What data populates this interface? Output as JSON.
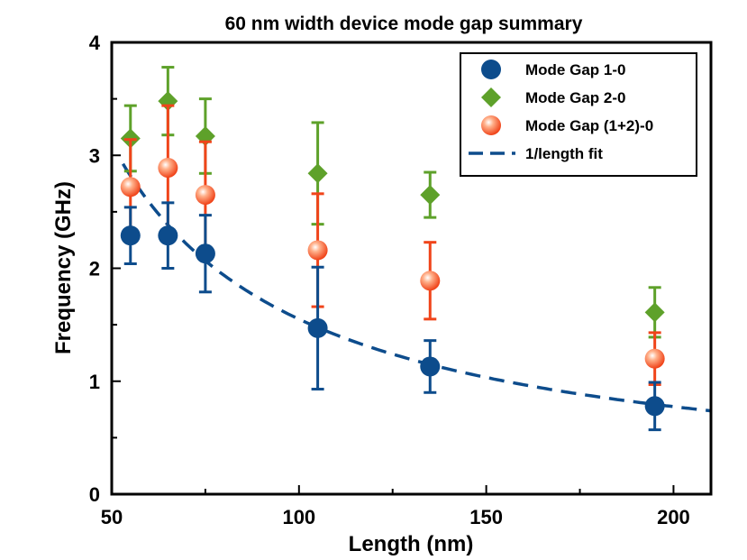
{
  "chart_data": {
    "type": "scatter",
    "title": "60 nm width device mode gap summary",
    "xlabel": "Length (nm)",
    "ylabel": "Frequency (GHz)",
    "xlim": [
      50,
      210
    ],
    "ylim": [
      0,
      4
    ],
    "x_ticks": [
      "50",
      "100",
      "150",
      "200"
    ],
    "y_ticks": [
      "0",
      "1",
      "2",
      "3",
      "4"
    ],
    "grid": false,
    "legend_position": "top-right",
    "x": [
      55,
      65,
      75,
      105,
      135,
      195
    ],
    "series": [
      {
        "name": "Mode Gap 1-0",
        "marker": "circle",
        "color": "#0d4c8c",
        "values": [
          2.29,
          2.29,
          2.13,
          1.47,
          1.13,
          0.78
        ],
        "err_low": [
          0.25,
          0.29,
          0.34,
          0.54,
          0.23,
          0.21
        ],
        "err_high": [
          0.25,
          0.29,
          0.34,
          0.54,
          0.23,
          0.21
        ]
      },
      {
        "name": "Mode Gap 2-0",
        "marker": "diamond",
        "color": "#5ea12a",
        "values": [
          3.15,
          3.48,
          3.17,
          2.84,
          2.65,
          1.61
        ],
        "err_low": [
          0.29,
          0.3,
          0.33,
          0.45,
          0.2,
          0.22
        ],
        "err_high": [
          0.29,
          0.3,
          0.33,
          0.45,
          0.2,
          0.22
        ]
      },
      {
        "name": "Mode Gap (1+2)-0",
        "marker": "sphere",
        "color": "#f0441a",
        "values": [
          2.72,
          2.89,
          2.65,
          2.16,
          1.89,
          1.2
        ],
        "err_low": [
          0.42,
          0.55,
          0.47,
          0.5,
          0.34,
          0.23
        ],
        "err_high": [
          0.42,
          0.55,
          0.47,
          0.5,
          0.34,
          0.23
        ]
      }
    ],
    "fit": {
      "name": "1/length fit",
      "style": "dashed",
      "color": "#0d4c8c",
      "equation_constant": 155
    }
  }
}
